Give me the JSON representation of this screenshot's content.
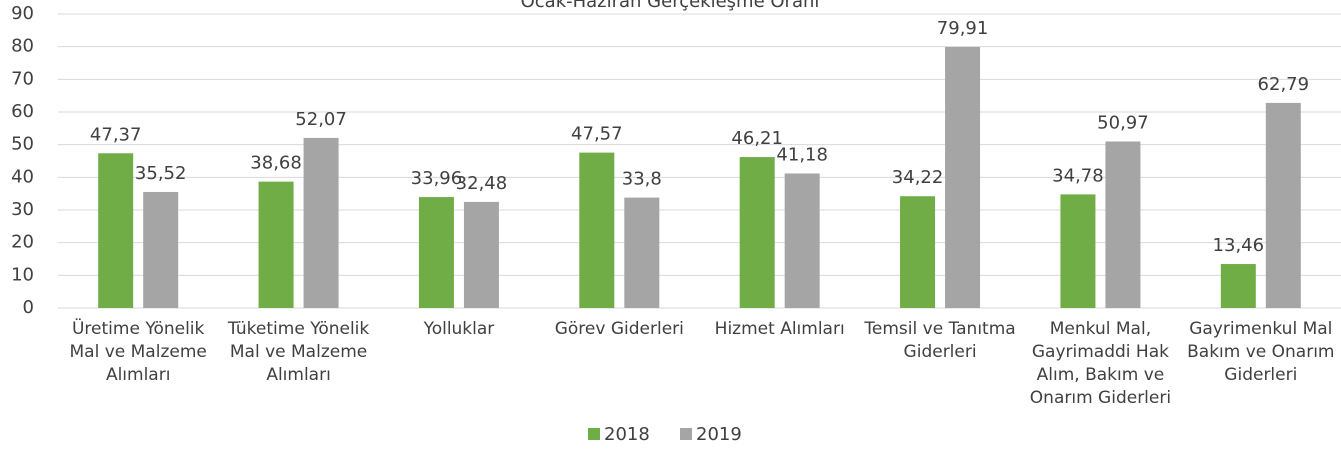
{
  "chart_data": {
    "type": "bar",
    "title": "Ocak-Haziran Gerçekleşme Oranı",
    "categories": [
      "Üretime Yönelik Mal ve Malzeme Alımları",
      "Tüketime Yönelik Mal ve Malzeme Alımları",
      "Yolluklar",
      "Görev Giderleri",
      "Hizmet Alımları",
      "Temsil ve Tanıtma Giderleri",
      "Menkul Mal, Gayrimaddi Hak Alım, Bakım ve Onarım Giderleri",
      "Gayrimenkul Mal Bakım ve Onarım Giderleri"
    ],
    "series": [
      {
        "name": "2018",
        "color": "#70ad47",
        "values": [
          47.37,
          38.68,
          33.96,
          47.57,
          46.21,
          34.22,
          34.78,
          13.46
        ],
        "value_labels": [
          "47,37",
          "38,68",
          "33,96",
          "47,57",
          "46,21",
          "34,22",
          "34,78",
          "13,46"
        ]
      },
      {
        "name": "2019",
        "color": "#a5a5a5",
        "values": [
          35.52,
          52.07,
          32.48,
          33.8,
          41.18,
          79.91,
          50.97,
          62.79
        ],
        "value_labels": [
          "35,52",
          "52,07",
          "32,48",
          "33,8",
          "41,18",
          "79,91",
          "50,97",
          "62,79"
        ]
      }
    ],
    "ylim": [
      0,
      90
    ],
    "yticks": [
      0,
      10,
      20,
      30,
      40,
      50,
      60,
      70,
      80,
      90
    ],
    "grid": true,
    "legend": "bottom"
  }
}
